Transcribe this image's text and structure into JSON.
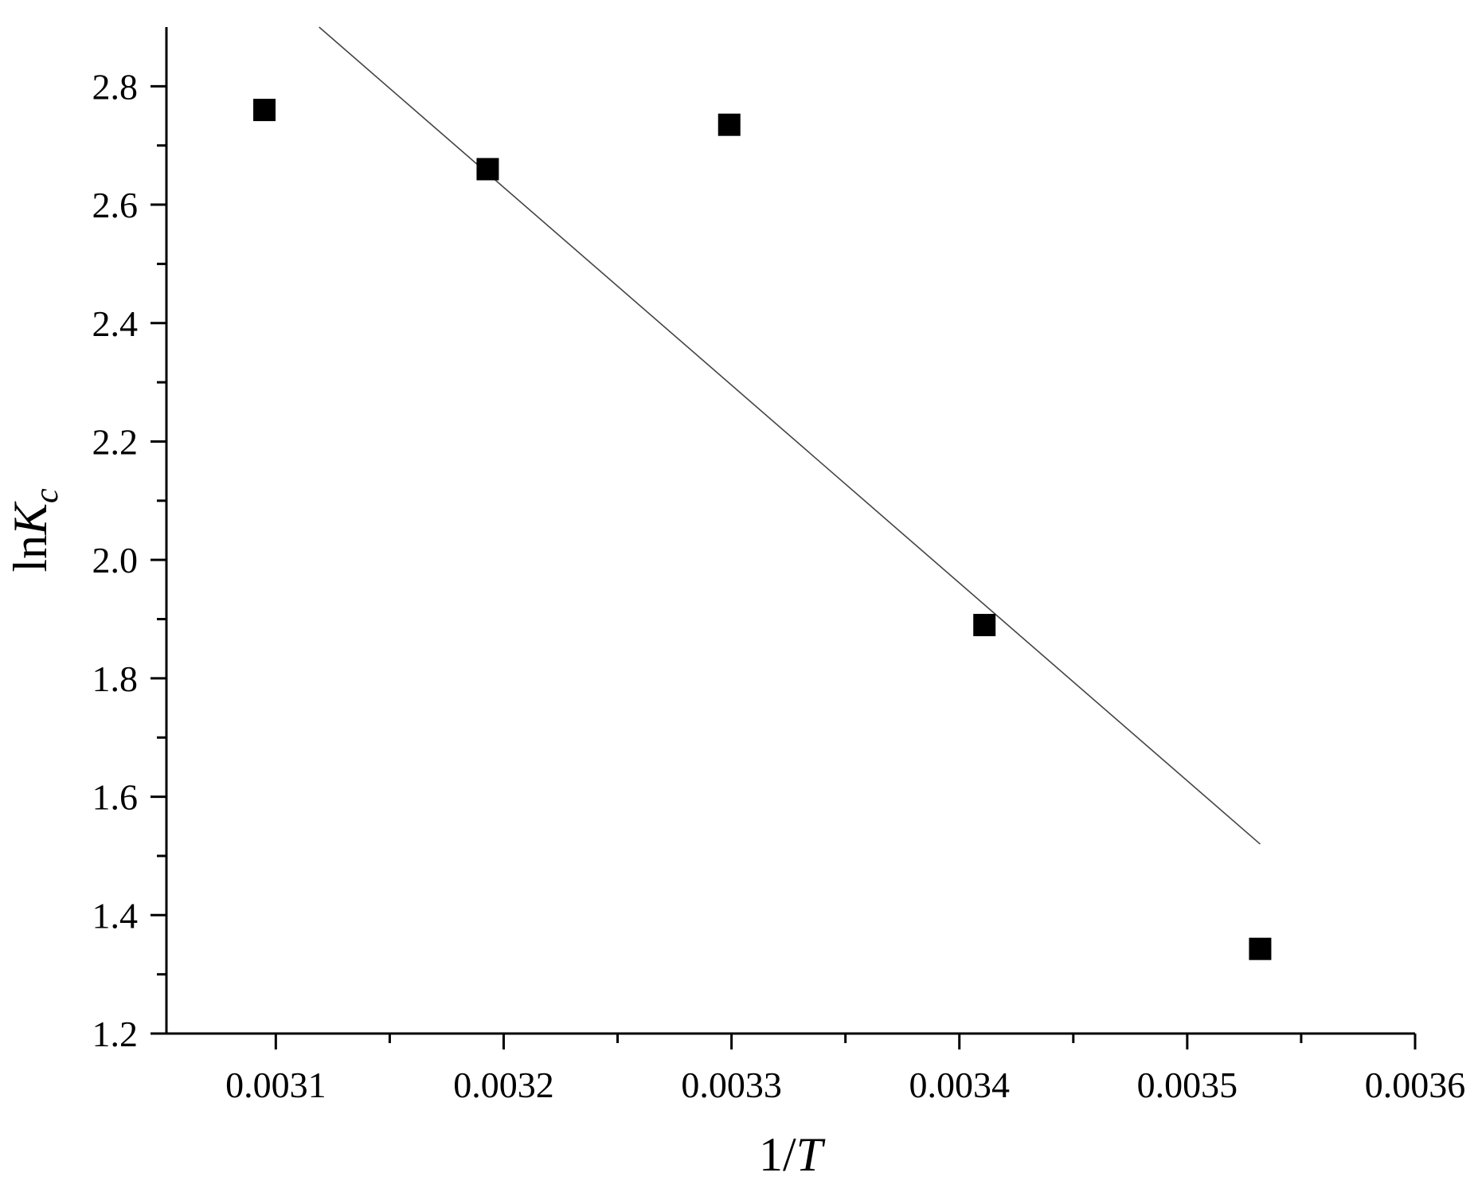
{
  "chart_data": {
    "type": "scatter",
    "title": "",
    "xlabel": "1/T",
    "ylabel": "lnK_c",
    "xlim": [
      0.003052,
      0.0036
    ],
    "ylim": [
      1.2,
      2.9
    ],
    "x_ticks": [
      0.0031,
      0.0032,
      0.0033,
      0.0034,
      0.0035,
      0.0036
    ],
    "x_tick_labels": [
      "0.0031",
      "0.0032",
      "0.0033",
      "0.0034",
      "0.0035",
      "0.0036"
    ],
    "y_ticks": [
      1.2,
      1.4,
      1.6,
      1.8,
      2.0,
      2.2,
      2.4,
      2.6,
      2.8
    ],
    "y_tick_labels": [
      "1.2",
      "1.4",
      "1.6",
      "1.8",
      "2.0",
      "2.2",
      "2.4",
      "2.6",
      "2.8"
    ],
    "grid": false,
    "legend": "none",
    "marker": "filled-square",
    "color": "#000000",
    "series": [
      {
        "x": [
          0.003095,
          0.003193,
          0.003299,
          0.003411,
          0.003532
        ],
        "y": [
          2.76,
          2.66,
          2.735,
          1.89,
          1.343
        ]
      }
    ],
    "fit_line": {
      "x": [
        0.003119,
        0.003532
      ],
      "y": [
        2.9,
        1.52
      ]
    }
  }
}
